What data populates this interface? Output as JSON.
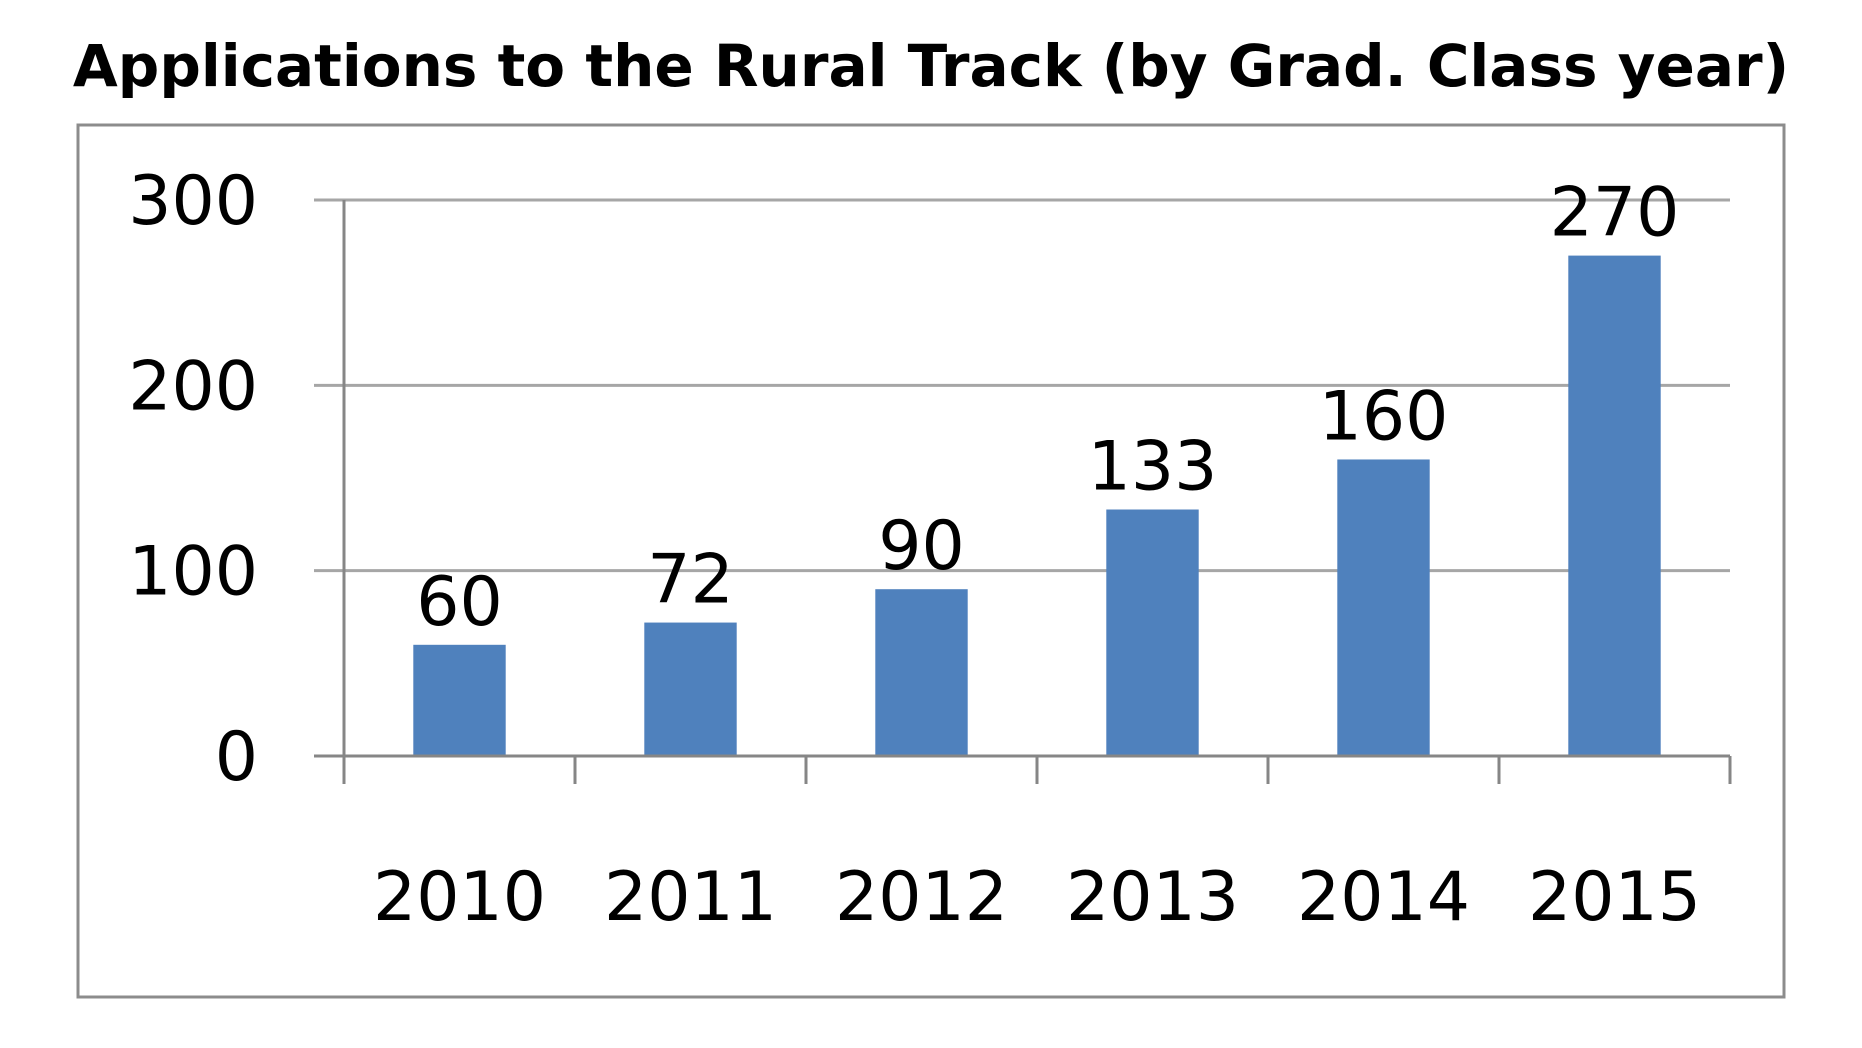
{
  "chart_data": {
    "type": "bar",
    "title": "Applications to the Rural Track (by Grad. Class year)",
    "xlabel": "",
    "ylabel": "",
    "categories": [
      "2010",
      "2011",
      "2012",
      "2013",
      "2014",
      "2015"
    ],
    "values": [
      60,
      72,
      90,
      133,
      160,
      270
    ],
    "data_labels": [
      "60",
      "72",
      "90",
      "133",
      "160",
      "270"
    ],
    "ylim": [
      0,
      300
    ],
    "yticks": [
      0,
      100,
      200,
      300
    ],
    "ytick_labels": [
      "0",
      "100",
      "200",
      "300"
    ],
    "grid": true,
    "legend": "none",
    "bar_color": "#4f81bd"
  }
}
